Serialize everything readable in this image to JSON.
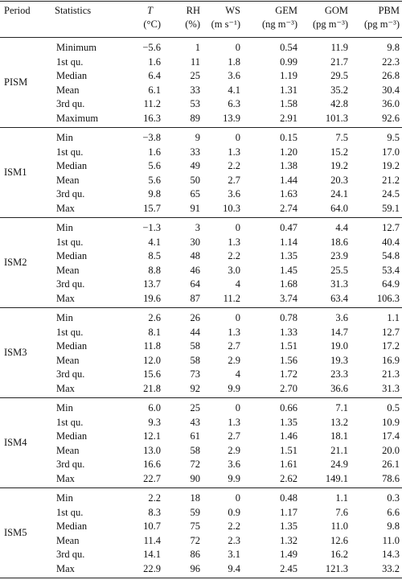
{
  "table": {
    "header": [
      {
        "name": "Period"
      },
      {
        "name": "Statistics"
      },
      {
        "name": "T",
        "unit": "(°C)"
      },
      {
        "name": "RH",
        "unit": "(%)"
      },
      {
        "name": "WS",
        "unit": "(m s⁻¹)"
      },
      {
        "name": "GEM",
        "unit": "(ng m⁻³)"
      },
      {
        "name": "GOM",
        "unit": "(pg m⁻³)"
      },
      {
        "name": "PBM",
        "unit": "(pg m⁻³)"
      }
    ],
    "groups": [
      {
        "period": "PISM",
        "rows": [
          {
            "stat": "Minimum",
            "values": [
              "−5.6",
              "1",
              "0",
              "0.54",
              "11.9",
              "9.8"
            ]
          },
          {
            "stat": "1st qu.",
            "values": [
              "1.6",
              "11",
              "1.8",
              "0.99",
              "21.7",
              "22.3"
            ]
          },
          {
            "stat": "Median",
            "values": [
              "6.4",
              "25",
              "3.6",
              "1.19",
              "29.5",
              "26.8"
            ]
          },
          {
            "stat": "Mean",
            "values": [
              "6.1",
              "33",
              "4.1",
              "1.31",
              "35.2",
              "30.4"
            ]
          },
          {
            "stat": "3rd qu.",
            "values": [
              "11.2",
              "53",
              "6.3",
              "1.58",
              "42.8",
              "36.0"
            ]
          },
          {
            "stat": "Maximum",
            "values": [
              "16.3",
              "89",
              "13.9",
              "2.91",
              "101.3",
              "92.6"
            ]
          }
        ]
      },
      {
        "period": "ISM1",
        "rows": [
          {
            "stat": "Min",
            "values": [
              "−3.8",
              "9",
              "0",
              "0.15",
              "7.5",
              "9.5"
            ]
          },
          {
            "stat": "1st qu.",
            "values": [
              "1.6",
              "33",
              "1.3",
              "1.20",
              "15.2",
              "17.0"
            ]
          },
          {
            "stat": "Median",
            "values": [
              "5.6",
              "49",
              "2.2",
              "1.38",
              "19.2",
              "19.2"
            ]
          },
          {
            "stat": "Mean",
            "values": [
              "5.6",
              "50",
              "2.7",
              "1.44",
              "20.3",
              "21.2"
            ]
          },
          {
            "stat": "3rd qu.",
            "values": [
              "9.8",
              "65",
              "3.6",
              "1.63",
              "24.1",
              "24.5"
            ]
          },
          {
            "stat": "Max",
            "values": [
              "15.7",
              "91",
              "10.3",
              "2.74",
              "64.0",
              "59.1"
            ]
          }
        ]
      },
      {
        "period": "ISM2",
        "rows": [
          {
            "stat": "Min",
            "values": [
              "−1.3",
              "3",
              "0",
              "0.47",
              "4.4",
              "12.7"
            ]
          },
          {
            "stat": "1st qu.",
            "values": [
              "4.1",
              "30",
              "1.3",
              "1.14",
              "18.6",
              "40.4"
            ]
          },
          {
            "stat": "Median",
            "values": [
              "8.5",
              "48",
              "2.2",
              "1.35",
              "23.9",
              "54.8"
            ]
          },
          {
            "stat": "Mean",
            "values": [
              "8.8",
              "46",
              "3.0",
              "1.45",
              "25.5",
              "53.4"
            ]
          },
          {
            "stat": "3rd qu.",
            "values": [
              "13.7",
              "64",
              "4",
              "1.68",
              "31.3",
              "64.9"
            ]
          },
          {
            "stat": "Max",
            "values": [
              "19.6",
              "87",
              "11.2",
              "3.74",
              "63.4",
              "106.3"
            ]
          }
        ]
      },
      {
        "period": "ISM3",
        "rows": [
          {
            "stat": "Min",
            "values": [
              "2.6",
              "26",
              "0",
              "0.78",
              "3.6",
              "1.1"
            ]
          },
          {
            "stat": "1st qu.",
            "values": [
              "8.1",
              "44",
              "1.3",
              "1.33",
              "14.7",
              "12.7"
            ]
          },
          {
            "stat": "Median",
            "values": [
              "11.8",
              "58",
              "2.7",
              "1.51",
              "19.0",
              "17.2"
            ]
          },
          {
            "stat": "Mean",
            "values": [
              "12.0",
              "58",
              "2.9",
              "1.56",
              "19.3",
              "16.9"
            ]
          },
          {
            "stat": "3rd qu.",
            "values": [
              "15.6",
              "73",
              "4",
              "1.72",
              "23.3",
              "21.3"
            ]
          },
          {
            "stat": "Max",
            "values": [
              "21.8",
              "92",
              "9.9",
              "2.70",
              "36.6",
              "31.3"
            ]
          }
        ]
      },
      {
        "period": "ISM4",
        "rows": [
          {
            "stat": "Min",
            "values": [
              "6.0",
              "25",
              "0",
              "0.66",
              "7.1",
              "0.5"
            ]
          },
          {
            "stat": "1st qu.",
            "values": [
              "9.3",
              "43",
              "1.3",
              "1.35",
              "13.2",
              "10.9"
            ]
          },
          {
            "stat": "Median",
            "values": [
              "12.1",
              "61",
              "2.7",
              "1.46",
              "18.1",
              "17.4"
            ]
          },
          {
            "stat": "Mean",
            "values": [
              "13.0",
              "58",
              "2.9",
              "1.51",
              "21.1",
              "20.0"
            ]
          },
          {
            "stat": "3rd qu.",
            "values": [
              "16.6",
              "72",
              "3.6",
              "1.61",
              "24.9",
              "26.1"
            ]
          },
          {
            "stat": "Max",
            "values": [
              "22.7",
              "90",
              "9.9",
              "2.62",
              "149.1",
              "78.6"
            ]
          }
        ]
      },
      {
        "period": "ISM5",
        "rows": [
          {
            "stat": "Min",
            "values": [
              "2.2",
              "18",
              "0",
              "0.48",
              "1.1",
              "0.3"
            ]
          },
          {
            "stat": "1st qu.",
            "values": [
              "8.3",
              "59",
              "0.9",
              "1.17",
              "7.6",
              "6.6"
            ]
          },
          {
            "stat": "Median",
            "values": [
              "10.7",
              "75",
              "2.2",
              "1.35",
              "11.0",
              "9.8"
            ]
          },
          {
            "stat": "Mean",
            "values": [
              "11.4",
              "72",
              "2.3",
              "1.32",
              "12.6",
              "11.0"
            ]
          },
          {
            "stat": "3rd qu.",
            "values": [
              "14.1",
              "86",
              "3.1",
              "1.49",
              "16.2",
              "14.3"
            ]
          },
          {
            "stat": "Max",
            "values": [
              "22.9",
              "96",
              "9.4",
              "2.45",
              "121.3",
              "33.2"
            ]
          }
        ]
      }
    ]
  }
}
